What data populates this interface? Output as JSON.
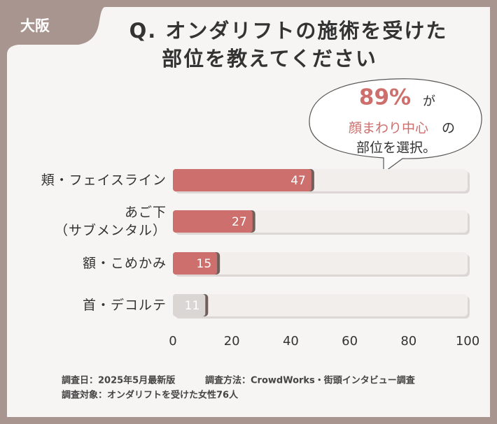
{
  "tag": "大阪",
  "chart_data": {
    "type": "hbar",
    "title": [
      "Q. オンダリフトの施術を受けた",
      "部位を教えてください"
    ],
    "categories": [
      "頬・フェイスライン",
      "あご下\n（サブメンタル）",
      "額・こめかみ",
      "首・デコルテ"
    ],
    "values": [
      47,
      27,
      15,
      11
    ],
    "colors": [
      "#cd6f6c",
      "#cd6f6c",
      "#cd6f6c",
      "#d9d6d4"
    ],
    "xlim": [
      0,
      100
    ],
    "xticks": [
      0,
      20,
      40,
      60,
      80,
      100
    ],
    "annotation": {
      "percent": "89%",
      "ga": "が",
      "highlight": "顔まわり中心",
      "no": "の",
      "rest": "部位を選択。"
    }
  },
  "footer": {
    "date": "調査日：2025年5月最新版",
    "method": "調査方法：CrowdWorks・街頭インタビュー調査",
    "target": "調査対象：オンダリフトを受けた女性76人"
  }
}
